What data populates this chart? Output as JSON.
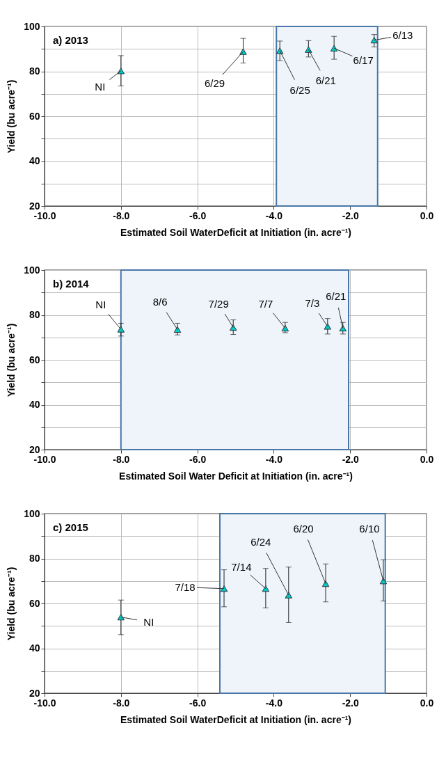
{
  "chart_data": [
    {
      "type": "scatter",
      "title": "a) 2013",
      "xlabel": "Estimated Soil WaterDeficit at Initiation (in. acre⁻¹)",
      "ylabel": "Yield (bu acre⁻¹)",
      "x": [
        -8.0,
        -4.8,
        -3.84,
        -3.09,
        -2.42,
        -1.37
      ],
      "values": [
        80.2,
        88.8,
        89.2,
        89.7,
        90.3,
        93.9
      ],
      "errors": [
        [
          73.5,
          87
        ],
        [
          83.7,
          94.7
        ],
        [
          84.8,
          93.5
        ],
        [
          86.4,
          93.7
        ],
        [
          85.4,
          95.6
        ],
        [
          90.9,
          96.4
        ]
      ],
      "color": "#00cccc",
      "marker": "triangle",
      "grid": true,
      "xlim": [
        -10,
        0
      ],
      "xticks": [
        {
          "value": -10,
          "label": "-10.0"
        },
        {
          "value": -8,
          "label": "-8.0"
        },
        {
          "value": -6,
          "label": "-6.0"
        },
        {
          "value": -4,
          "label": "-4.0"
        },
        {
          "value": -2,
          "label": "-2.0"
        },
        {
          "value": 0,
          "label": "0.0"
        }
      ],
      "ylim": [
        20,
        100
      ],
      "yticks": [
        20,
        {
          "value": 30,
          "label": null
        },
        40,
        {
          "value": 50,
          "label": null
        },
        60,
        {
          "value": 70,
          "label": null
        },
        80,
        {
          "value": 90,
          "label": null
        },
        100
      ],
      "bands": [
        {
          "axis": "x",
          "from": -3.93,
          "to": -1.28,
          "color": "#eef4fa"
        }
      ],
      "annotations": [
        {
          "text": "NI",
          "x": -8.0,
          "y": 80.2
        },
        {
          "text": "6/29",
          "x": -4.8,
          "y": 88.8
        },
        {
          "text": "6/25",
          "x": -3.84,
          "y": 89.2
        },
        {
          "text": "6/21",
          "x": -3.09,
          "y": 89.7
        },
        {
          "text": "6/17",
          "x": -2.42,
          "y": 90.3
        },
        {
          "text": "6/13",
          "x": -1.37,
          "y": 93.9
        }
      ]
    },
    {
      "type": "scatter",
      "title": "b) 2014",
      "xlabel": "Estimated Soil Water Deficit at Initiation (in. acre⁻¹)",
      "ylabel": "Yield (bu acre⁻¹)",
      "x": [
        -8.0,
        -6.52,
        -5.06,
        -3.7,
        -2.59,
        -2.19
      ],
      "values": [
        73.6,
        73.5,
        74.4,
        74.1,
        74.9,
        74.1
      ],
      "errors": [
        [
          70.6,
          76.3
        ],
        [
          71.1,
          76.3
        ],
        [
          71.3,
          77.8
        ],
        [
          72.1,
          76.7
        ],
        [
          71.5,
          78.4
        ],
        [
          71.5,
          76.7
        ]
      ],
      "color": "#00cccc",
      "marker": "triangle",
      "grid": true,
      "xlim": [
        -10,
        0
      ],
      "xticks": [
        {
          "value": -10,
          "label": "-10.0"
        },
        {
          "value": -8,
          "label": "-8.0"
        },
        {
          "value": -6,
          "label": "-6.0"
        },
        {
          "value": -4,
          "label": "-4.0"
        },
        {
          "value": -2,
          "label": "-2.0"
        },
        {
          "value": 0,
          "label": "0.0"
        }
      ],
      "ylim": [
        20,
        100
      ],
      "yticks": [
        20,
        {
          "value": 30,
          "label": null
        },
        40,
        {
          "value": 50,
          "label": null
        },
        60,
        {
          "value": 70,
          "label": null
        },
        80,
        {
          "value": 90,
          "label": null
        },
        100
      ],
      "bands": [
        {
          "axis": "x",
          "from": -8.0,
          "to": -2.04,
          "color": "#eef4fa"
        }
      ],
      "annotations": [
        {
          "text": "NI",
          "x": -8.0,
          "y": 73.6
        },
        {
          "text": "8/6",
          "x": -6.52,
          "y": 73.5
        },
        {
          "text": "7/29",
          "x": -5.06,
          "y": 74.4
        },
        {
          "text": "7/7",
          "x": -3.7,
          "y": 74.1
        },
        {
          "text": "7/3",
          "x": -2.59,
          "y": 74.9
        },
        {
          "text": "6/21",
          "x": -2.19,
          "y": 74.1
        }
      ]
    },
    {
      "type": "scatter",
      "title": "c) 2015",
      "xlabel": "Estimated Soil WaterDeficit at Initiation (in. acre⁻¹)",
      "ylabel": "Yield (bu acre⁻¹)",
      "x": [
        -8.0,
        -5.3,
        -4.21,
        -3.61,
        -2.64,
        -1.13
      ],
      "values": [
        53.9,
        66.6,
        66.6,
        63.7,
        68.8,
        70.0
      ],
      "errors": [
        [
          46.1,
          61.5
        ],
        [
          58.5,
          75.0
        ],
        [
          58.0,
          75.6
        ],
        [
          51.5,
          76.2
        ],
        [
          60.7,
          77.6
        ],
        [
          61.1,
          79.5
        ]
      ],
      "color": "#00cccc",
      "marker": "triangle",
      "grid": true,
      "xlim": [
        -10,
        0
      ],
      "xticks": [
        {
          "value": -10,
          "label": "-10.0"
        },
        {
          "value": -8,
          "label": "-8.0"
        },
        {
          "value": -6,
          "label": "-6.0"
        },
        {
          "value": -4,
          "label": "-4.0"
        },
        {
          "value": -2,
          "label": "-2.0"
        },
        {
          "value": 0,
          "label": "0.0"
        }
      ],
      "ylim": [
        20,
        100
      ],
      "yticks": [
        20,
        {
          "value": 30,
          "label": null
        },
        40,
        {
          "value": 50,
          "label": null
        },
        60,
        {
          "value": 70,
          "label": null
        },
        80,
        {
          "value": 90,
          "label": null
        },
        100
      ],
      "bands": [
        {
          "axis": "x",
          "from": -5.41,
          "to": -1.08,
          "color": "#eef4fa"
        }
      ],
      "annotations": [
        {
          "text": "NI",
          "x": -8.0,
          "y": 53.9
        },
        {
          "text": "7/18",
          "x": -5.3,
          "y": 66.6
        },
        {
          "text": "7/14",
          "x": -4.21,
          "y": 66.6
        },
        {
          "text": "6/24",
          "x": -3.61,
          "y": 63.7
        },
        {
          "text": "6/20",
          "x": -2.64,
          "y": 68.8
        },
        {
          "text": "6/10",
          "x": -1.13,
          "y": 70.0
        }
      ]
    }
  ]
}
